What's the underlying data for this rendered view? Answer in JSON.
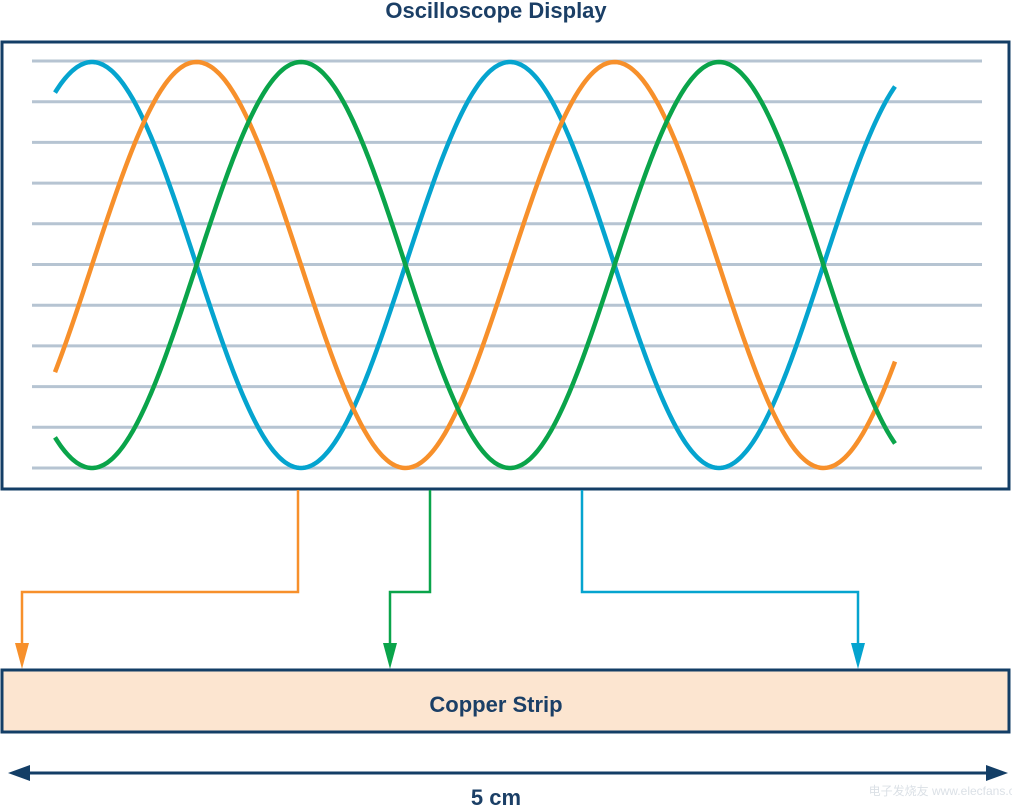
{
  "title": "Oscilloscope Display",
  "strip_label": "Copper Strip",
  "length_label": "5 cm",
  "watermark": "电子发烧友 www.elecfans.com",
  "colors": {
    "frame": "#133e66",
    "grid": "#b6c4d2",
    "orange": "#f7902b",
    "green": "#0aa44a",
    "blue": "#05a4cf",
    "strip_fill": "#fce5d0"
  },
  "grid_lines": 11,
  "waves": [
    {
      "color_key": "blue",
      "phase_deg": 0
    },
    {
      "color_key": "orange",
      "phase_deg": -90
    },
    {
      "color_key": "green",
      "phase_deg": 180
    }
  ]
}
